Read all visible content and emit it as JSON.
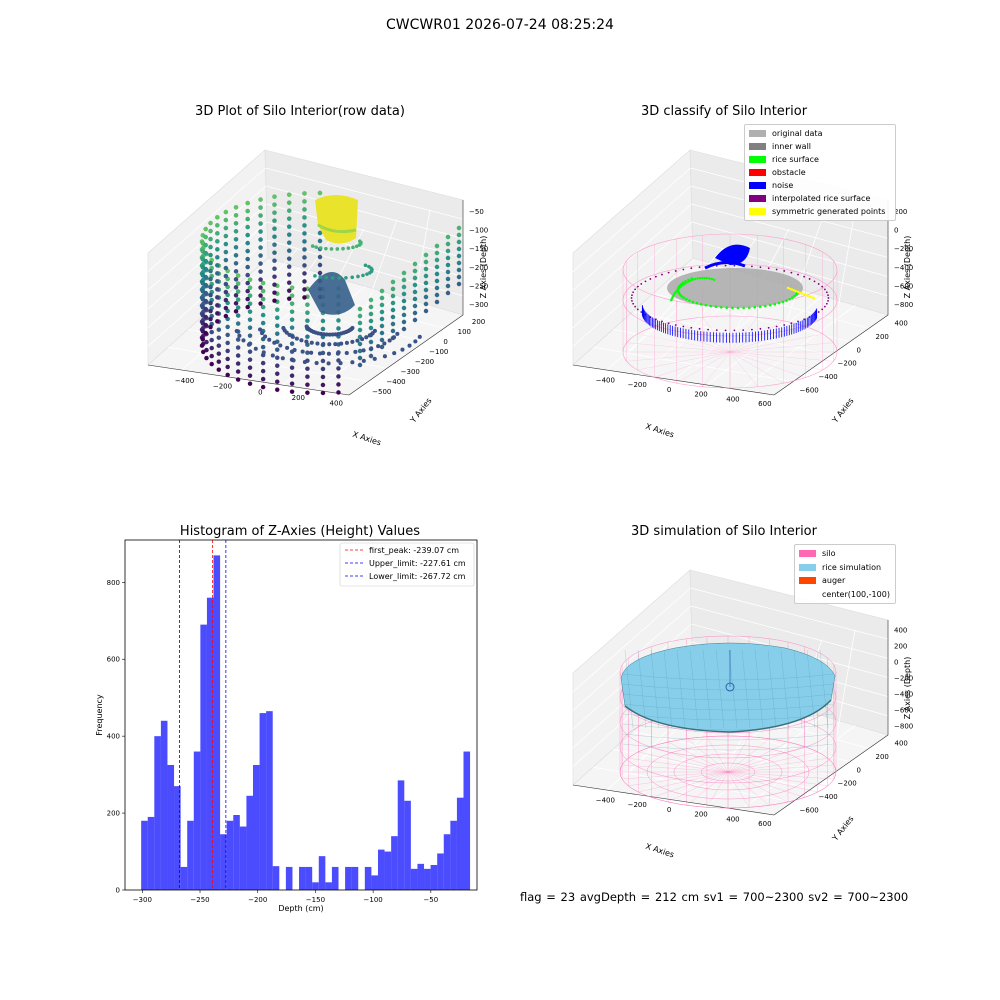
{
  "figure": {
    "suptitle": "CWCWR01 2026-07-24 08:25:24",
    "footer": "flag = 23  avgDepth = 212 cm  sv1 = 700~2300  sv2 = 700~2300"
  },
  "panels": {
    "raw": {
      "title": "3D Plot of Silo Interior(row data)",
      "xlabel": "X Axies",
      "ylabel": "Y Axies",
      "zlabel": "Z Axies (Depth)",
      "xticks": [
        "−400",
        "−200",
        "0",
        "200",
        "400"
      ],
      "yticks": [
        "200",
        "100",
        "0",
        "−100",
        "−200",
        "−300",
        "−400",
        "−500"
      ],
      "zticks": [
        "−50",
        "−100",
        "−150",
        "−200",
        "−250",
        "−300"
      ]
    },
    "classify": {
      "title": "3D classify of Silo Interior",
      "xlabel": "X Axies",
      "ylabel": "Y Axies",
      "zlabel": "Z Axies (Depth)",
      "xticks": [
        "−400",
        "−200",
        "0",
        "200",
        "400",
        "600"
      ],
      "yticks": [
        "400",
        "200",
        "0",
        "−200",
        "−400",
        "−600"
      ],
      "zticks": [
        "200",
        "0",
        "−200",
        "−400",
        "−600",
        "−800"
      ],
      "legend": [
        {
          "label": "original data",
          "color": "#b0b0b0"
        },
        {
          "label": "inner wall",
          "color": "#808080"
        },
        {
          "label": "rice surface",
          "color": "#00ff00"
        },
        {
          "label": "obstacle",
          "color": "#ff0000"
        },
        {
          "label": "noise",
          "color": "#0000ff"
        },
        {
          "label": "interpolated rice surface",
          "color": "#800080"
        },
        {
          "label": "symmetric generated points",
          "color": "#ffff00"
        }
      ]
    },
    "simulation": {
      "title": "3D simulation of Silo Interior",
      "xlabel": "X Axies",
      "ylabel": "Y Axies",
      "zlabel": "Z Axies (Depth)",
      "xticks": [
        "−400",
        "−200",
        "0",
        "200",
        "400",
        "600"
      ],
      "yticks": [
        "400",
        "200",
        "0",
        "−200",
        "−400",
        "−600"
      ],
      "zticks": [
        "400",
        "200",
        "0",
        "−200",
        "−400",
        "−600",
        "−800"
      ],
      "legend": [
        {
          "label": "silo",
          "color": "#ff69b4"
        },
        {
          "label": "rice simulation",
          "color": "#87ceeb"
        },
        {
          "label": "auger",
          "color": "#ff4500"
        },
        {
          "label": "center(100,-100)",
          "color": "#ffffff"
        }
      ]
    }
  },
  "chart_data": {
    "type": "bar",
    "title": "Histogram of Z-Axies (Height) Values",
    "xlabel": "Depth (cm)",
    "ylabel": "Frequency",
    "xlim": [
      -315,
      -10
    ],
    "ylim": [
      0,
      910
    ],
    "xticks": [
      -300,
      -250,
      -200,
      -150,
      -100,
      -50
    ],
    "yticks": [
      0,
      200,
      400,
      600,
      800
    ],
    "bar_color": "#0000ff",
    "bins": {
      "start": -301,
      "width": 5.7
    },
    "values": [
      180,
      190,
      400,
      440,
      325,
      270,
      60,
      180,
      360,
      690,
      760,
      870,
      145,
      180,
      195,
      165,
      245,
      325,
      460,
      465,
      62,
      0,
      60,
      0,
      60,
      60,
      20,
      88,
      20,
      60,
      0,
      60,
      60,
      0,
      60,
      38,
      105,
      100,
      140,
      285,
      232,
      55,
      68,
      55,
      65,
      95,
      145,
      180,
      240,
      360
    ],
    "vlines": [
      {
        "label": "first_peak: -239.07 cm",
        "x": -239.07,
        "color": "#ff0000"
      },
      {
        "label": "Upper_limit: -227.61 cm",
        "x": -227.61,
        "color": "#0000ff"
      },
      {
        "label": "Lower_limit: -267.72 cm",
        "x": -267.72,
        "color": "#0000ff"
      }
    ]
  }
}
